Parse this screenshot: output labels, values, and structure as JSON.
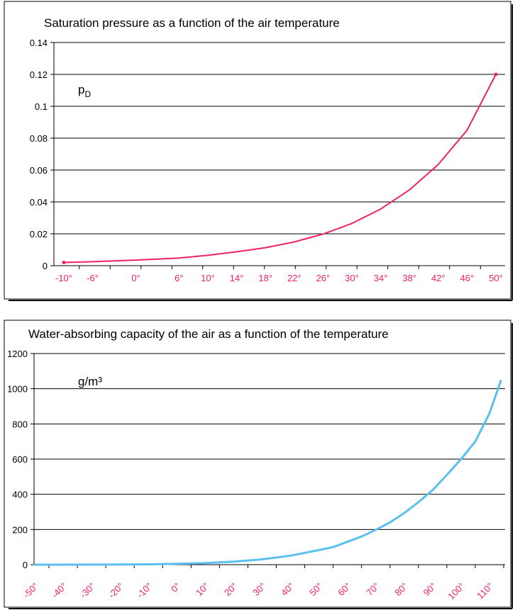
{
  "colors": {
    "pressure_series": "#ee2266",
    "capacity_series": "#5bc0f0",
    "x_tick_text": "#ee2266"
  },
  "chart_data": [
    {
      "type": "line",
      "title": "Saturation pressure as a function of the air temperature",
      "unit_label": "p",
      "unit_subscript": "D",
      "xlabel": "",
      "ylabel": "",
      "ylim": [
        0,
        0.14
      ],
      "y_ticks": [
        "0",
        "0.02",
        "0.04",
        "0.06",
        "0.08",
        "0.1",
        "0.12",
        "0.14"
      ],
      "y_tick_values": [
        0,
        0.02,
        0.04,
        0.06,
        0.08,
        0.1,
        0.12,
        0.14
      ],
      "x_ticks": [
        "-10°",
        "-6°",
        "0°",
        "6°",
        "10°",
        "14°",
        "18°",
        "22°",
        "26°",
        "30°",
        "34°",
        "38°",
        "42°",
        "46°",
        "50°"
      ],
      "x_tick_values": [
        -10,
        -6,
        0,
        6,
        10,
        14,
        18,
        22,
        26,
        30,
        34,
        38,
        42,
        46,
        50
      ],
      "grid": true,
      "series": [
        {
          "color": "#ee2266",
          "x": [
            -10,
            -6,
            0,
            6,
            10,
            14,
            18,
            22,
            26,
            30,
            34,
            38,
            42,
            46,
            50
          ],
          "values": [
            0.002,
            0.0025,
            0.0035,
            0.0048,
            0.0065,
            0.0087,
            0.0113,
            0.0149,
            0.0198,
            0.0265,
            0.0355,
            0.0475,
            0.0635,
            0.085,
            0.12
          ]
        }
      ]
    },
    {
      "type": "line",
      "title": "Water-absorbing capacity of the air as a function of the temperature",
      "unit_label": "g/m³",
      "xlabel": "",
      "ylabel": "",
      "ylim": [
        0,
        1200
      ],
      "y_ticks": [
        "0",
        "200",
        "400",
        "600",
        "800",
        "1000",
        "1200"
      ],
      "y_tick_values": [
        0,
        200,
        400,
        600,
        800,
        1000,
        1200
      ],
      "x_ticks": [
        "-50°",
        "-40°",
        "-30°",
        "-20°",
        "-10°",
        "0°",
        "10°",
        "20°",
        "30°",
        "40°",
        "50°",
        "60°",
        "70°",
        "80°",
        "90°",
        "100°",
        "110°"
      ],
      "x_tick_values": [
        -50,
        -40,
        -30,
        -20,
        -10,
        0,
        10,
        20,
        30,
        40,
        50,
        60,
        70,
        80,
        90,
        100,
        110
      ],
      "grid": true,
      "series": [
        {
          "color": "#5bc0f0",
          "x": [
            -50,
            -40,
            -30,
            -20,
            -10,
            0,
            10,
            20,
            30,
            40,
            50,
            55,
            60,
            65,
            70,
            75,
            80,
            85,
            90,
            95,
            100,
            105,
            110,
            114
          ],
          "values": [
            0,
            0.2,
            0.5,
            1,
            2.1,
            4.8,
            9.4,
            17.3,
            30.4,
            51.1,
            83,
            100,
            130,
            160,
            198,
            240,
            293,
            355,
            424,
            510,
            600,
            700,
            860,
            1045
          ]
        }
      ]
    }
  ]
}
